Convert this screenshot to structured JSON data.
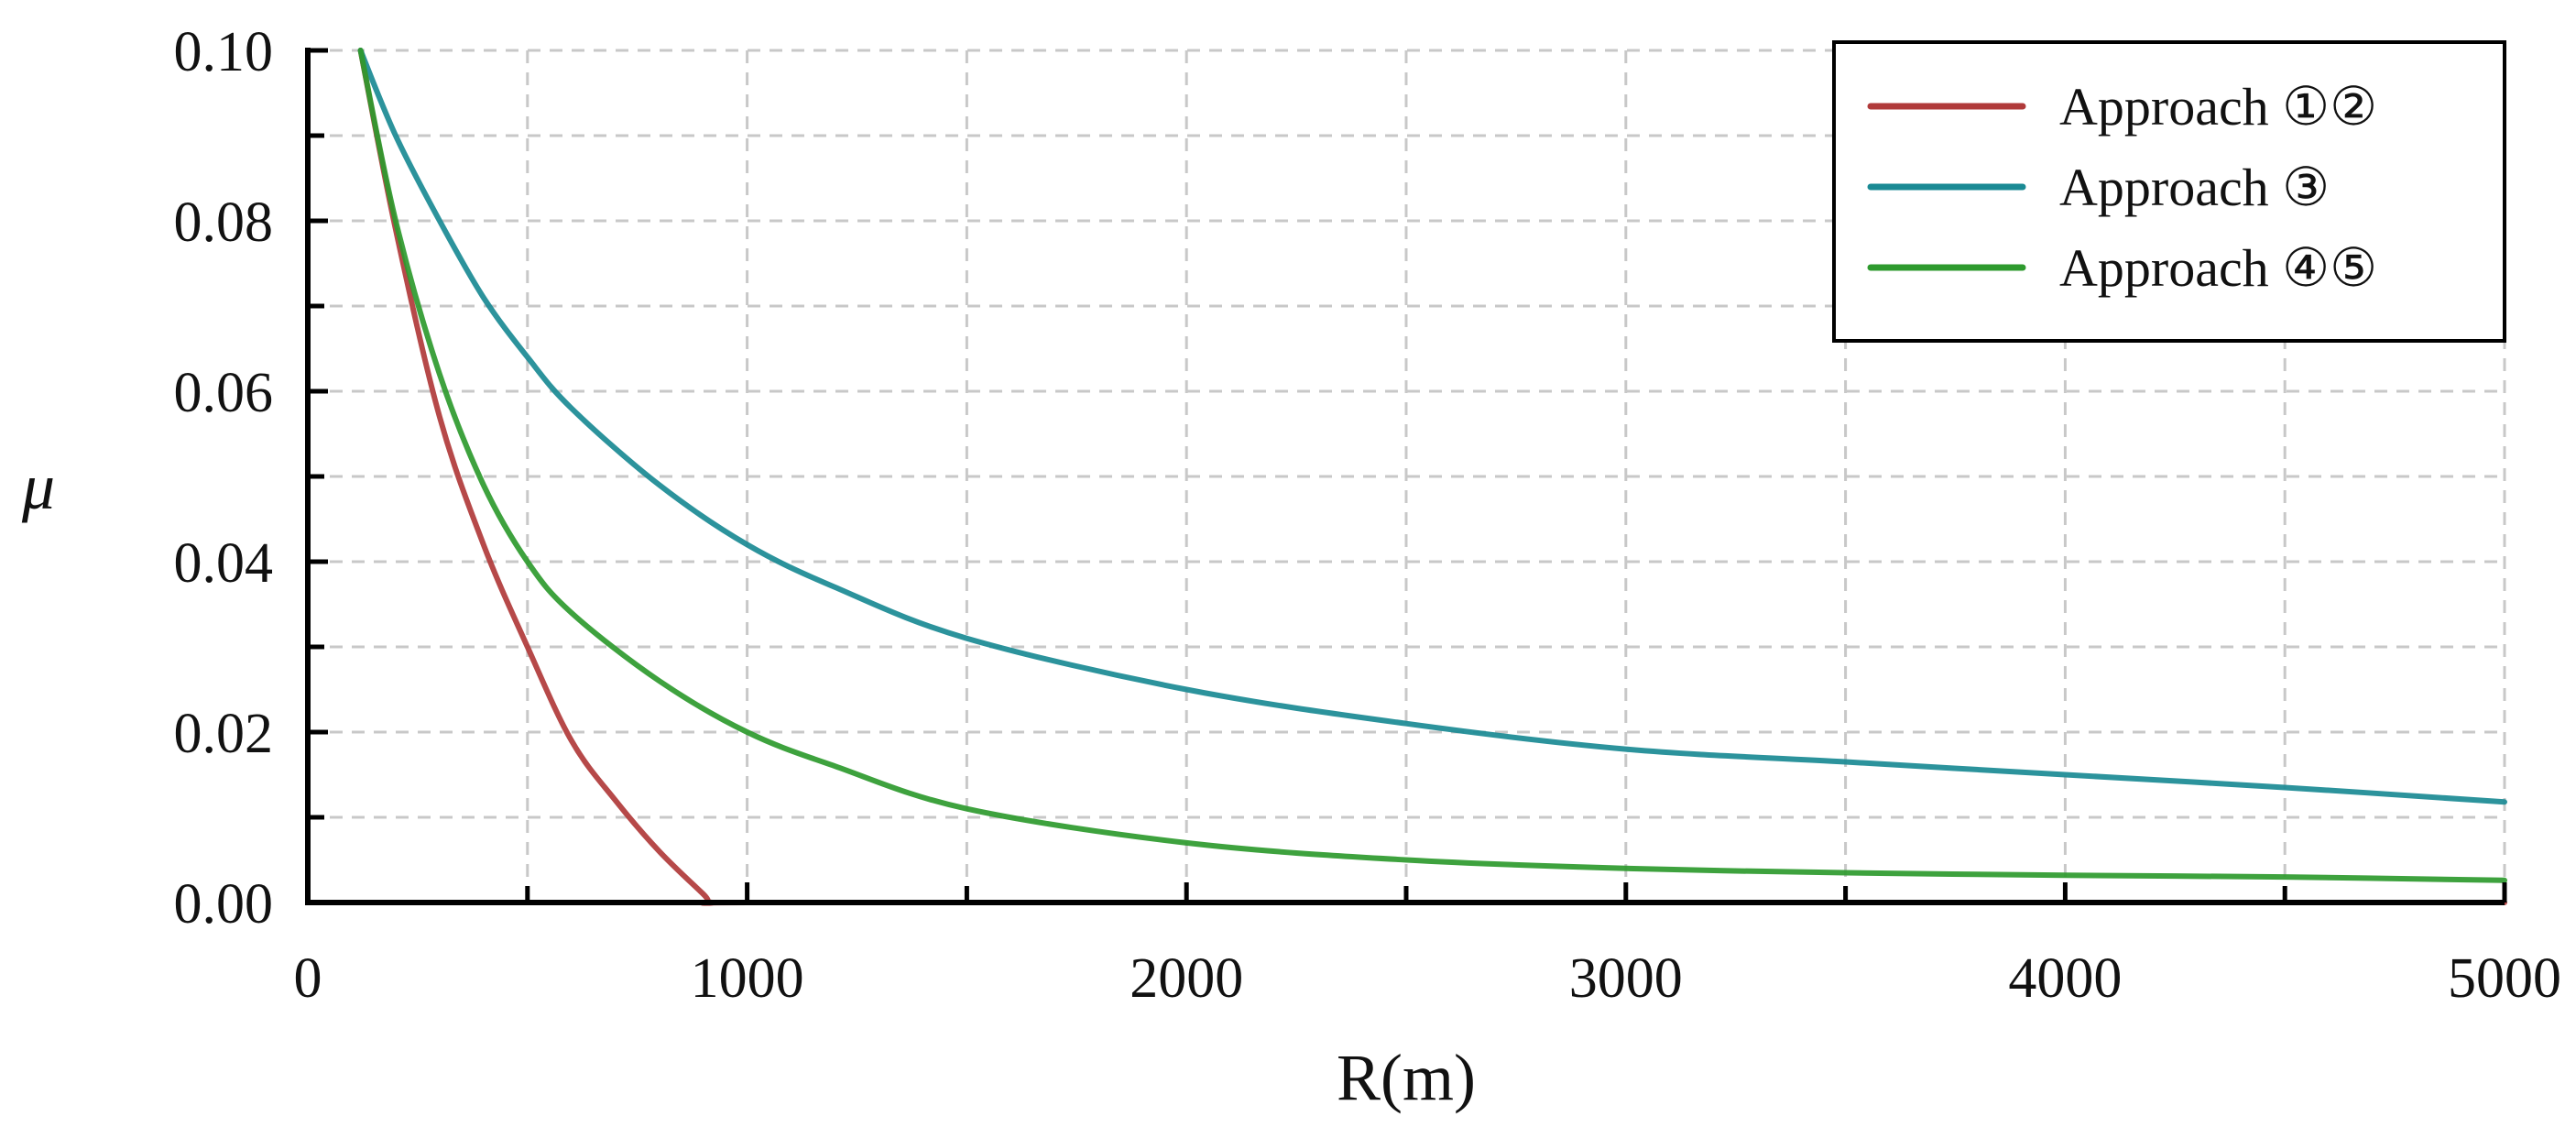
{
  "chart_data": {
    "type": "line",
    "title": "",
    "xlabel": "R(m)",
    "ylabel": "μ",
    "xlim": [
      0,
      5000
    ],
    "ylim": [
      0,
      0.1
    ],
    "xticks": [
      0,
      1000,
      2000,
      3000,
      4000,
      5000
    ],
    "xtick_labels": [
      "0",
      "1000",
      "2000",
      "3000",
      "4000",
      "5000"
    ],
    "yticks": [
      0,
      0.02,
      0.04,
      0.06,
      0.08,
      0.1
    ],
    "ytick_labels": [
      "0.00",
      "0.02",
      "0.04",
      "0.06",
      "0.08",
      "0.10"
    ],
    "grid": true,
    "legend_position": "top-right",
    "series": [
      {
        "name": "Approach ①②",
        "color": "#b03a3a",
        "x": [
          120,
          200,
          300,
          400,
          500,
          600,
          700,
          800,
          900,
          920,
          1000,
          2000,
          3000,
          4000,
          5000
        ],
        "y": [
          0.1,
          0.079,
          0.057,
          0.042,
          0.03,
          0.019,
          0.012,
          0.006,
          0.001,
          0.0,
          0.0,
          0.0,
          0.0,
          0.0,
          0.0
        ]
      },
      {
        "name": "Approach ③",
        "color": "#1a8a94",
        "x": [
          120,
          200,
          300,
          400,
          500,
          600,
          800,
          1000,
          1200,
          1500,
          2000,
          2500,
          3000,
          3500,
          4000,
          4500,
          5000
        ],
        "y": [
          0.1,
          0.09,
          0.08,
          0.071,
          0.064,
          0.058,
          0.049,
          0.042,
          0.037,
          0.031,
          0.025,
          0.021,
          0.018,
          0.0165,
          0.015,
          0.0135,
          0.0118
        ]
      },
      {
        "name": "Approach ④⑤",
        "color": "#2e9a2e",
        "x": [
          120,
          200,
          300,
          400,
          500,
          600,
          800,
          1000,
          1200,
          1500,
          2000,
          2500,
          3000,
          3500,
          4000,
          4500,
          5000
        ],
        "y": [
          0.1,
          0.08,
          0.062,
          0.049,
          0.04,
          0.034,
          0.026,
          0.02,
          0.016,
          0.011,
          0.007,
          0.005,
          0.004,
          0.0035,
          0.0032,
          0.003,
          0.0026
        ]
      }
    ]
  }
}
